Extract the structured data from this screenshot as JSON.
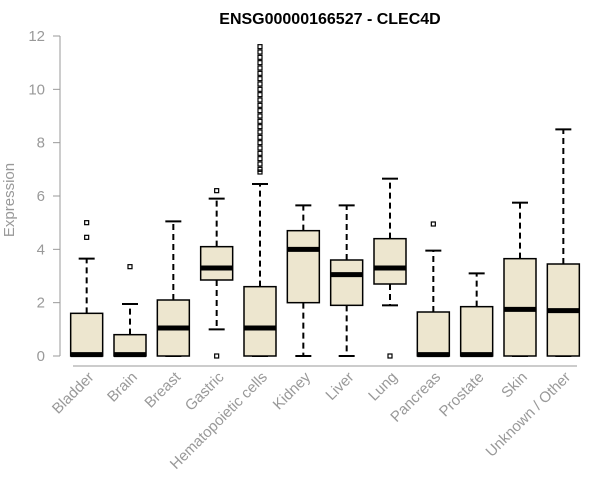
{
  "chart_data": {
    "type": "boxplot",
    "title": "ENSG00000166527 - CLEC4D",
    "xlabel": "",
    "ylabel": "Expression",
    "ylim": [
      0,
      12
    ],
    "yticks": [
      0,
      2,
      4,
      6,
      8,
      10,
      12
    ],
    "grid": false,
    "colors": {
      "box_fill": "#ede6cf",
      "stroke": "#000000",
      "axis": "#999999"
    },
    "categories": [
      "Bladder",
      "Brain",
      "Breast",
      "Gastric",
      "Hematopoietic cells",
      "Kidney",
      "Liver",
      "Lung",
      "Pancreas",
      "Prostate",
      "Skin",
      "Unknown / Other"
    ],
    "boxes": [
      {
        "category": "Bladder",
        "min": 0,
        "q1": 0,
        "median": 0.05,
        "q3": 1.6,
        "max": 3.65,
        "outliers": [
          4.45,
          5.0
        ]
      },
      {
        "category": "Brain",
        "min": 0,
        "q1": 0,
        "median": 0.05,
        "q3": 0.8,
        "max": 1.95,
        "outliers": [
          3.35
        ]
      },
      {
        "category": "Breast",
        "min": 0,
        "q1": 0,
        "median": 1.05,
        "q3": 2.1,
        "max": 5.05,
        "outliers": []
      },
      {
        "category": "Gastric",
        "min": 1.0,
        "q1": 2.85,
        "median": 3.3,
        "q3": 4.1,
        "max": 5.9,
        "outliers": [
          0.0,
          6.2
        ]
      },
      {
        "category": "Hematopoietic cells",
        "min": 0,
        "q1": 0,
        "median": 1.05,
        "q3": 2.6,
        "max": 6.45,
        "outliers": [
          6.9,
          7.0,
          7.2,
          7.4,
          7.6,
          7.8,
          8.0,
          8.2,
          8.4,
          8.6,
          8.8,
          9.0,
          9.2,
          9.4,
          9.6,
          9.8,
          10.0,
          10.2,
          10.4,
          10.6,
          10.8,
          11.0,
          11.2,
          11.4,
          11.6
        ]
      },
      {
        "category": "Kidney",
        "min": 0,
        "q1": 2.0,
        "median": 4.0,
        "q3": 4.7,
        "max": 5.65,
        "outliers": []
      },
      {
        "category": "Liver",
        "min": 0,
        "q1": 1.9,
        "median": 3.05,
        "q3": 3.6,
        "max": 5.65,
        "outliers": []
      },
      {
        "category": "Lung",
        "min": 1.9,
        "q1": 2.7,
        "median": 3.3,
        "q3": 4.4,
        "max": 6.65,
        "outliers": [
          0.0
        ]
      },
      {
        "category": "Pancreas",
        "min": 0,
        "q1": 0,
        "median": 0.05,
        "q3": 1.65,
        "max": 3.95,
        "outliers": [
          4.95
        ]
      },
      {
        "category": "Prostate",
        "min": 0,
        "q1": 0,
        "median": 0.05,
        "q3": 1.85,
        "max": 3.1,
        "outliers": []
      },
      {
        "category": "Skin",
        "min": 0,
        "q1": 0,
        "median": 1.75,
        "q3": 3.65,
        "max": 5.75,
        "outliers": []
      },
      {
        "category": "Unknown / Other",
        "min": 0,
        "q1": 0,
        "median": 1.7,
        "q3": 3.45,
        "max": 8.5,
        "outliers": []
      }
    ]
  }
}
